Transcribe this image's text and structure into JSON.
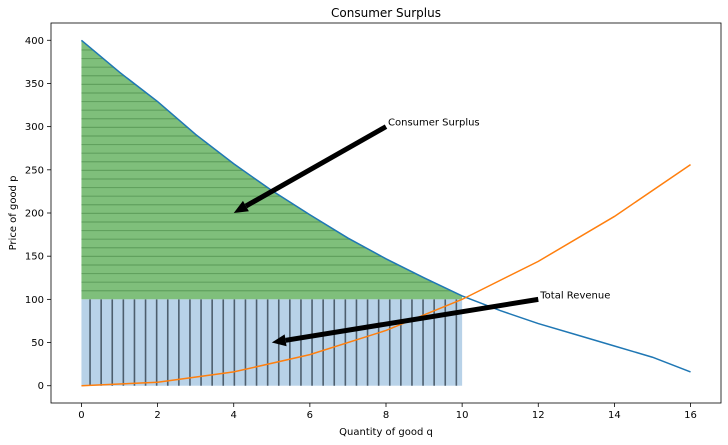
{
  "chart_data": {
    "type": "line",
    "title": "Consumer Surplus",
    "xlabel": "Quantity of good q",
    "ylabel": "Price of good p",
    "xlim": [
      -0.8,
      16.8
    ],
    "ylim": [
      -20,
      420
    ],
    "xticks": [
      0,
      2,
      4,
      6,
      8,
      10,
      12,
      14,
      16
    ],
    "yticks": [
      0,
      50,
      100,
      150,
      200,
      250,
      300,
      350,
      400
    ],
    "grid": false,
    "series": [
      {
        "name": "",
        "color": "#1f77b4",
        "x": [
          0,
          1,
          2,
          3,
          4,
          5,
          6,
          7,
          8,
          9,
          10,
          11,
          12,
          13,
          14,
          15,
          16
        ],
        "y": [
          400,
          363,
          329,
          291,
          257,
          226,
          198,
          171,
          147,
          125,
          104,
          87,
          72,
          59,
          46,
          33,
          16
        ]
      },
      {
        "name": "",
        "color": "#ff7f0e",
        "x": [
          0,
          2,
          4,
          6,
          8,
          10,
          12,
          14,
          16
        ],
        "y": [
          0,
          4,
          16,
          36,
          64,
          100,
          144,
          196,
          256
        ]
      }
    ],
    "regions": [
      {
        "name": "Consumer Surplus",
        "color": "#7fbf7b",
        "from_q": 0,
        "to_q": 10,
        "lower_price": 100,
        "upper": "demand curve",
        "hatch": "horizontal"
      },
      {
        "name": "Total Revenue",
        "color": "#b8d2e8",
        "from_q": 0,
        "to_q": 10,
        "lower_price": 0,
        "upper_price": 100,
        "hatch": "vertical"
      }
    ],
    "annotations": [
      {
        "text": "Consumer Surplus",
        "text_xy": [
          8,
          300
        ],
        "arrow_to": [
          4,
          200
        ]
      },
      {
        "text": "Total Revenue",
        "text_xy": [
          12,
          100
        ],
        "arrow_to": [
          5,
          50
        ]
      }
    ]
  }
}
